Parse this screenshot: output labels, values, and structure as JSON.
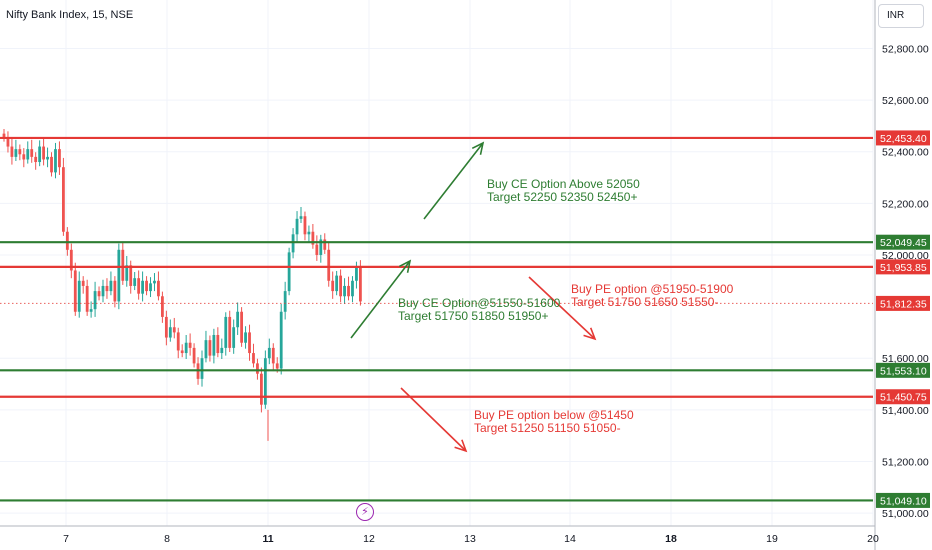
{
  "header": {
    "symbol": "Nifty Bank Index, 15, NSE",
    "currency": "INR"
  },
  "icons": {
    "lightning": "lightning-bolt-icon"
  },
  "colors": {
    "green": "#2e7d32",
    "red": "#e53935",
    "up": "#26a69a",
    "down": "#ef5350",
    "grid": "#f0f3fa",
    "axis": "#131722"
  },
  "chart_data": {
    "type": "candlestick",
    "title": "",
    "ylim": [
      50950,
      52980
    ],
    "y_ticks": [
      {
        "value": 52800,
        "label": "52,800.00"
      },
      {
        "value": 52600,
        "label": "52,600.00"
      },
      {
        "value": 52400,
        "label": "52,400.00"
      },
      {
        "value": 52200,
        "label": "52,200.00"
      },
      {
        "value": 52000,
        "label": "52,000.00"
      },
      {
        "value": 51600,
        "label": "51,600.00"
      },
      {
        "value": 51400,
        "label": "51,400.00"
      },
      {
        "value": 51200,
        "label": "51,200.00"
      },
      {
        "value": 51000,
        "label": "51,000.00"
      }
    ],
    "x_ticks": [
      {
        "day": 7,
        "label": "7",
        "bold": false
      },
      {
        "day": 8,
        "label": "8",
        "bold": false
      },
      {
        "day": 11,
        "label": "11",
        "bold": true
      },
      {
        "day": 12,
        "label": "12",
        "bold": false
      },
      {
        "day": 13,
        "label": "13",
        "bold": false
      },
      {
        "day": 14,
        "label": "14",
        "bold": false
      },
      {
        "day": 18,
        "label": "18",
        "bold": true
      },
      {
        "day": 19,
        "label": "19",
        "bold": false
      },
      {
        "day": 20,
        "label": "20",
        "bold": false
      }
    ],
    "horizontal_levels": [
      {
        "value": 52453.4,
        "label": "52,453.40",
        "color": "red"
      },
      {
        "value": 52049.45,
        "label": "52,049.45",
        "color": "green"
      },
      {
        "value": 51953.85,
        "label": "51,953.85",
        "color": "red"
      },
      {
        "value": 51553.1,
        "label": "51,553.10",
        "color": "green"
      },
      {
        "value": 51450.75,
        "label": "51,450.75",
        "color": "red"
      },
      {
        "value": 51049.1,
        "label": "51,049.10",
        "color": "green"
      }
    ],
    "last_price": {
      "value": 51812.35,
      "label": "51,812.35"
    },
    "close_series": [
      52455,
      52420,
      52380,
      52410,
      52390,
      52370,
      52410,
      52380,
      52360,
      52420,
      52370,
      52380,
      52320,
      52410,
      52340,
      52090,
      52020,
      51940,
      51780,
      51900,
      51880,
      51780,
      51790,
      51860,
      51840,
      51880,
      51860,
      51900,
      51820,
      52020,
      51900,
      51960,
      51880,
      51910,
      51850,
      51900,
      51860,
      51890,
      51900,
      51840,
      51760,
      51680,
      51720,
      51700,
      51630,
      51620,
      51660,
      51640,
      51580,
      51520,
      51600,
      51670,
      51610,
      51690,
      51620,
      51640,
      51760,
      51640,
      51720,
      51780,
      51660,
      51700,
      51620,
      51580,
      51540,
      51420,
      51600,
      51640,
      51580,
      51560,
      51780,
      51860,
      52010,
      52080,
      52140,
      52150,
      52080,
      52090,
      52040,
      52000,
      52060,
      52020,
      51900,
      51860,
      51920,
      51840,
      51880,
      51840,
      51900,
      51950,
      51820
    ],
    "annotations": [
      {
        "id": "ce-above",
        "color": "green",
        "line1": "Buy CE Option Above 52050",
        "line2": "Target 52250 52350 52450+"
      },
      {
        "id": "ce-range",
        "color": "green",
        "line1": "Buy CE Option@51550-51600",
        "line2": "Target 51750 51850 51950+"
      },
      {
        "id": "pe-range",
        "color": "red",
        "line1": "Buy PE option @51950-51900",
        "line2": "Target 51750 51650 51550-"
      },
      {
        "id": "pe-below",
        "color": "red",
        "line1": "Buy PE option below @51450",
        "line2": "Target 51250 51150 51050-"
      }
    ]
  }
}
